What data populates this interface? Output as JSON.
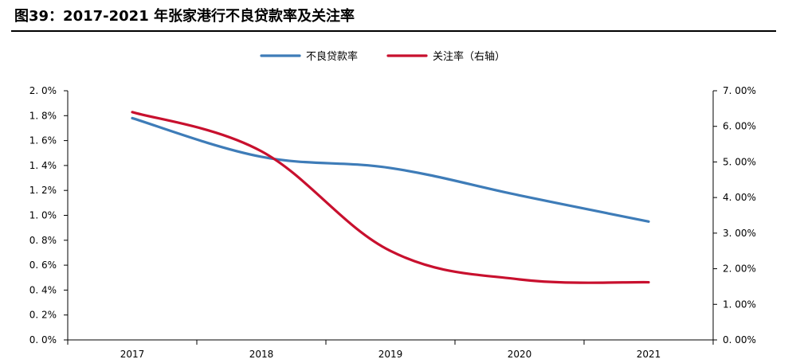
{
  "header": {
    "title": "图39：2017-2021 年张家港行不良贷款率及关注率"
  },
  "chart_data": {
    "type": "line",
    "title": "图39：2017-2021 年张家港行不良贷款率及关注率",
    "categories": [
      "2017",
      "2018",
      "2019",
      "2020",
      "2021"
    ],
    "series": [
      {
        "name": "不良贷款率",
        "axis": "left",
        "color": "#3E7CB8",
        "values": [
          1.78,
          1.47,
          1.38,
          1.16,
          0.95
        ]
      },
      {
        "name": "关注率（右轴）",
        "axis": "right",
        "color": "#C8102E",
        "values": [
          6.4,
          5.3,
          2.5,
          1.7,
          1.62
        ]
      }
    ],
    "y_left": {
      "ylim": [
        0,
        2.0
      ],
      "ticks": [
        "0. 0%",
        "0. 2%",
        "0. 4%",
        "0. 6%",
        "0. 8%",
        "1. 0%",
        "1. 2%",
        "1. 4%",
        "1. 6%",
        "1. 8%",
        "2. 0%"
      ]
    },
    "y_right": {
      "ylim": [
        0,
        7.0
      ],
      "ticks": [
        "0. 00%",
        "1. 00%",
        "2. 00%",
        "3. 00%",
        "4. 00%",
        "5. 00%",
        "6. 00%",
        "7. 00%"
      ]
    },
    "xlabel": "",
    "ylabel": "",
    "legend_position": "top-center",
    "grid": false
  }
}
